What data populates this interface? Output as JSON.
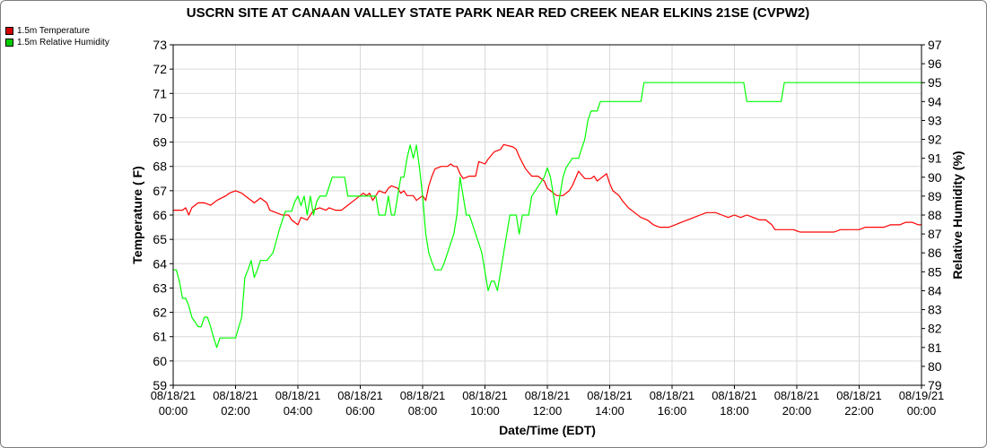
{
  "chart_data": {
    "type": "line",
    "title": "USCRN SITE AT CANAAN VALLEY STATE PARK NEAR RED CREEK NEAR ELKINS 21SE (CVPW2)",
    "xlabel": "Date/Time (EDT)",
    "ylabel_left": "Temperature ( F)",
    "ylabel_right": "Relative Humidity (%)",
    "ylim_left": [
      59,
      73
    ],
    "ylim_right": [
      79,
      97
    ],
    "xlim_hours": [
      0,
      24
    ],
    "x_ticks": [
      {
        "date": "08/18/21",
        "time": "00:00",
        "hour": 0
      },
      {
        "date": "08/18/21",
        "time": "02:00",
        "hour": 2
      },
      {
        "date": "08/18/21",
        "time": "04:00",
        "hour": 4
      },
      {
        "date": "08/18/21",
        "time": "06:00",
        "hour": 6
      },
      {
        "date": "08/18/21",
        "time": "08:00",
        "hour": 8
      },
      {
        "date": "08/18/21",
        "time": "10:00",
        "hour": 10
      },
      {
        "date": "08/18/21",
        "time": "12:00",
        "hour": 12
      },
      {
        "date": "08/18/21",
        "time": "14:00",
        "hour": 14
      },
      {
        "date": "08/18/21",
        "time": "16:00",
        "hour": 16
      },
      {
        "date": "08/18/21",
        "time": "18:00",
        "hour": 18
      },
      {
        "date": "08/18/21",
        "time": "20:00",
        "hour": 20
      },
      {
        "date": "08/18/21",
        "time": "22:00",
        "hour": 22
      },
      {
        "date": "08/19/21",
        "time": "00:00",
        "hour": 24
      }
    ],
    "grid": true,
    "legend_position": "top-left",
    "series": [
      {
        "name": "1.5m Temperature",
        "axis": "left",
        "color": "#ff0000",
        "points": [
          [
            0,
            66.2
          ],
          [
            0.3,
            66.2
          ],
          [
            0.4,
            66.3
          ],
          [
            0.5,
            66.0
          ],
          [
            0.6,
            66.3
          ],
          [
            0.8,
            66.5
          ],
          [
            1.0,
            66.5
          ],
          [
            1.2,
            66.4
          ],
          [
            1.4,
            66.6
          ],
          [
            1.7,
            66.8
          ],
          [
            1.8,
            66.9
          ],
          [
            2.0,
            67.0
          ],
          [
            2.2,
            66.9
          ],
          [
            2.4,
            66.7
          ],
          [
            2.6,
            66.5
          ],
          [
            2.8,
            66.7
          ],
          [
            3.0,
            66.5
          ],
          [
            3.1,
            66.2
          ],
          [
            3.3,
            66.1
          ],
          [
            3.5,
            66.0
          ],
          [
            3.7,
            66.0
          ],
          [
            3.8,
            65.8
          ],
          [
            4.0,
            65.6
          ],
          [
            4.1,
            65.9
          ],
          [
            4.3,
            65.8
          ],
          [
            4.5,
            66.2
          ],
          [
            4.7,
            66.3
          ],
          [
            4.9,
            66.2
          ],
          [
            5.0,
            66.3
          ],
          [
            5.2,
            66.2
          ],
          [
            5.4,
            66.2
          ],
          [
            5.6,
            66.4
          ],
          [
            5.8,
            66.6
          ],
          [
            6.0,
            66.8
          ],
          [
            6.1,
            66.9
          ],
          [
            6.2,
            66.8
          ],
          [
            6.3,
            66.9
          ],
          [
            6.4,
            66.6
          ],
          [
            6.5,
            66.8
          ],
          [
            6.6,
            67.0
          ],
          [
            6.8,
            66.9
          ],
          [
            6.9,
            67.1
          ],
          [
            7.0,
            67.2
          ],
          [
            7.2,
            67.1
          ],
          [
            7.3,
            66.9
          ],
          [
            7.4,
            67.0
          ],
          [
            7.5,
            66.8
          ],
          [
            7.7,
            66.8
          ],
          [
            7.8,
            66.6
          ],
          [
            8.0,
            66.8
          ],
          [
            8.1,
            66.6
          ],
          [
            8.2,
            67.2
          ],
          [
            8.3,
            67.6
          ],
          [
            8.4,
            67.9
          ],
          [
            8.6,
            68.0
          ],
          [
            8.8,
            68.0
          ],
          [
            8.9,
            68.1
          ],
          [
            9.0,
            68.0
          ],
          [
            9.1,
            68.0
          ],
          [
            9.2,
            67.7
          ],
          [
            9.3,
            67.5
          ],
          [
            9.5,
            67.6
          ],
          [
            9.7,
            67.6
          ],
          [
            9.8,
            68.2
          ],
          [
            10.0,
            68.1
          ],
          [
            10.1,
            68.3
          ],
          [
            10.3,
            68.6
          ],
          [
            10.5,
            68.7
          ],
          [
            10.6,
            68.9
          ],
          [
            10.9,
            68.8
          ],
          [
            11.0,
            68.7
          ],
          [
            11.1,
            68.4
          ],
          [
            11.3,
            67.9
          ],
          [
            11.5,
            67.6
          ],
          [
            11.7,
            67.6
          ],
          [
            11.9,
            67.4
          ],
          [
            12.0,
            67.1
          ],
          [
            12.1,
            67.0
          ],
          [
            12.3,
            66.8
          ],
          [
            12.5,
            66.8
          ],
          [
            12.7,
            67.0
          ],
          [
            12.8,
            67.2
          ],
          [
            12.9,
            67.5
          ],
          [
            13.0,
            67.8
          ],
          [
            13.2,
            67.5
          ],
          [
            13.4,
            67.5
          ],
          [
            13.5,
            67.6
          ],
          [
            13.6,
            67.4
          ],
          [
            13.7,
            67.5
          ],
          [
            13.8,
            67.6
          ],
          [
            13.9,
            67.7
          ],
          [
            14.0,
            67.3
          ],
          [
            14.1,
            67.0
          ],
          [
            14.2,
            66.9
          ],
          [
            14.3,
            66.8
          ],
          [
            14.4,
            66.6
          ],
          [
            14.6,
            66.3
          ],
          [
            14.8,
            66.1
          ],
          [
            15.0,
            65.9
          ],
          [
            15.2,
            65.8
          ],
          [
            15.4,
            65.6
          ],
          [
            15.6,
            65.5
          ],
          [
            15.9,
            65.5
          ],
          [
            16.1,
            65.6
          ],
          [
            16.3,
            65.7
          ],
          [
            16.5,
            65.8
          ],
          [
            16.7,
            65.9
          ],
          [
            16.9,
            66.0
          ],
          [
            17.1,
            66.1
          ],
          [
            17.4,
            66.1
          ],
          [
            17.6,
            66.0
          ],
          [
            17.8,
            65.9
          ],
          [
            18.0,
            66.0
          ],
          [
            18.2,
            65.9
          ],
          [
            18.4,
            66.0
          ],
          [
            18.6,
            65.9
          ],
          [
            18.8,
            65.8
          ],
          [
            19.0,
            65.8
          ],
          [
            19.2,
            65.6
          ],
          [
            19.3,
            65.4
          ],
          [
            19.6,
            65.4
          ],
          [
            19.9,
            65.4
          ],
          [
            20.1,
            65.3
          ],
          [
            20.3,
            65.3
          ],
          [
            20.6,
            65.3
          ],
          [
            20.9,
            65.3
          ],
          [
            21.2,
            65.3
          ],
          [
            21.4,
            65.4
          ],
          [
            21.7,
            65.4
          ],
          [
            22.0,
            65.4
          ],
          [
            22.2,
            65.5
          ],
          [
            22.5,
            65.5
          ],
          [
            22.8,
            65.5
          ],
          [
            23.0,
            65.6
          ],
          [
            23.3,
            65.6
          ],
          [
            23.5,
            65.7
          ],
          [
            23.7,
            65.7
          ],
          [
            23.9,
            65.6
          ],
          [
            24.0,
            65.6
          ]
        ]
      },
      {
        "name": "1.5m Relative Humidity",
        "axis": "right",
        "color": "#00ff00",
        "points": [
          [
            0,
            85.1
          ],
          [
            0.1,
            85.1
          ],
          [
            0.2,
            84.5
          ],
          [
            0.3,
            83.6
          ],
          [
            0.4,
            83.6
          ],
          [
            0.5,
            83.2
          ],
          [
            0.6,
            82.6
          ],
          [
            0.8,
            82.1
          ],
          [
            0.9,
            82.1
          ],
          [
            1.0,
            82.6
          ],
          [
            1.1,
            82.6
          ],
          [
            1.2,
            82.1
          ],
          [
            1.3,
            81.5
          ],
          [
            1.4,
            81.0
          ],
          [
            1.5,
            81.5
          ],
          [
            2.0,
            81.5
          ],
          [
            2.2,
            82.6
          ],
          [
            2.3,
            84.7
          ],
          [
            2.4,
            85.1
          ],
          [
            2.5,
            85.6
          ],
          [
            2.6,
            84.7
          ],
          [
            2.7,
            85.1
          ],
          [
            2.8,
            85.6
          ],
          [
            3.0,
            85.6
          ],
          [
            3.2,
            86.0
          ],
          [
            3.3,
            86.6
          ],
          [
            3.4,
            87.2
          ],
          [
            3.5,
            87.7
          ],
          [
            3.6,
            88.2
          ],
          [
            3.8,
            88.2
          ],
          [
            3.9,
            88.7
          ],
          [
            4.0,
            89.0
          ],
          [
            4.1,
            88.5
          ],
          [
            4.2,
            89.0
          ],
          [
            4.3,
            88.0
          ],
          [
            4.4,
            89.0
          ],
          [
            4.5,
            88.0
          ],
          [
            4.6,
            88.7
          ],
          [
            4.7,
            89.0
          ],
          [
            4.9,
            89.0
          ],
          [
            5.0,
            89.5
          ],
          [
            5.1,
            90.0
          ],
          [
            5.5,
            90.0
          ],
          [
            5.6,
            89.0
          ],
          [
            6.0,
            89.0
          ],
          [
            6.5,
            89.0
          ],
          [
            6.6,
            88.0
          ],
          [
            6.8,
            88.0
          ],
          [
            6.9,
            89.0
          ],
          [
            7.0,
            88.0
          ],
          [
            7.1,
            88.0
          ],
          [
            7.2,
            89.0
          ],
          [
            7.3,
            90.0
          ],
          [
            7.4,
            90.0
          ],
          [
            7.5,
            91.0
          ],
          [
            7.6,
            91.7
          ],
          [
            7.7,
            91.0
          ],
          [
            7.8,
            91.7
          ],
          [
            7.9,
            90.5
          ],
          [
            8.0,
            89.0
          ],
          [
            8.1,
            87.0
          ],
          [
            8.2,
            86.0
          ],
          [
            8.3,
            85.5
          ],
          [
            8.4,
            85.1
          ],
          [
            8.6,
            85.1
          ],
          [
            8.7,
            85.5
          ],
          [
            8.8,
            86.0
          ],
          [
            8.9,
            86.5
          ],
          [
            9.0,
            87.0
          ],
          [
            9.1,
            88.0
          ],
          [
            9.2,
            90.0
          ],
          [
            9.3,
            89.0
          ],
          [
            9.4,
            88.0
          ],
          [
            9.5,
            88.0
          ],
          [
            9.6,
            87.5
          ],
          [
            9.7,
            87.0
          ],
          [
            9.8,
            86.5
          ],
          [
            9.9,
            86.0
          ],
          [
            10.0,
            85.0
          ],
          [
            10.1,
            84.0
          ],
          [
            10.2,
            84.5
          ],
          [
            10.3,
            84.5
          ],
          [
            10.4,
            84.0
          ],
          [
            10.5,
            85.0
          ],
          [
            10.6,
            86.0
          ],
          [
            10.7,
            87.0
          ],
          [
            10.8,
            88.0
          ],
          [
            11.0,
            88.0
          ],
          [
            11.1,
            87.0
          ],
          [
            11.2,
            88.0
          ],
          [
            11.4,
            88.0
          ],
          [
            11.5,
            89.0
          ],
          [
            11.7,
            89.5
          ],
          [
            11.9,
            90.0
          ],
          [
            12.0,
            90.5
          ],
          [
            12.1,
            90.0
          ],
          [
            12.2,
            89.0
          ],
          [
            12.3,
            88.0
          ],
          [
            12.4,
            89.0
          ],
          [
            12.5,
            90.0
          ],
          [
            12.6,
            90.5
          ],
          [
            12.8,
            91.0
          ],
          [
            13.0,
            91.0
          ],
          [
            13.1,
            91.5
          ],
          [
            13.2,
            92.0
          ],
          [
            13.3,
            93.0
          ],
          [
            13.4,
            93.5
          ],
          [
            13.6,
            93.5
          ],
          [
            13.7,
            94.0
          ],
          [
            15.0,
            94.0
          ],
          [
            15.1,
            95.0
          ],
          [
            18.3,
            95.0
          ],
          [
            18.4,
            94.0
          ],
          [
            19.5,
            94.0
          ],
          [
            19.6,
            95.0
          ],
          [
            24.0,
            95.0
          ]
        ]
      }
    ]
  }
}
